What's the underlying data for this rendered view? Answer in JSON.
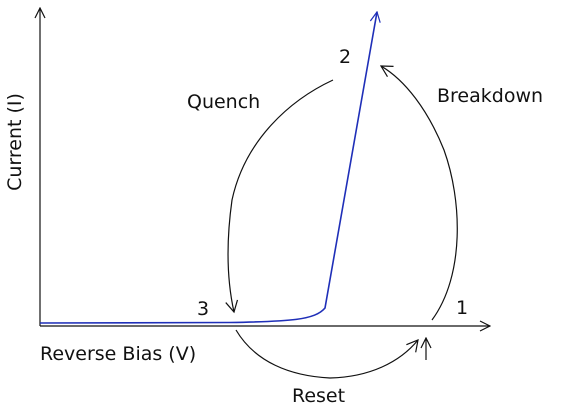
{
  "axes": {
    "x_label": "Reverse Bias (V)",
    "y_label": "Current (I)"
  },
  "points": [
    {
      "id": "p1",
      "label": "1"
    },
    {
      "id": "p2",
      "label": "2"
    },
    {
      "id": "p3",
      "label": "3"
    }
  ],
  "transitions": {
    "breakdown": "Breakdown",
    "quench": "Quench",
    "reset": "Reset"
  },
  "colors": {
    "curve": "#1f2fb8",
    "axes": "#111111",
    "arrows": "#111111"
  }
}
